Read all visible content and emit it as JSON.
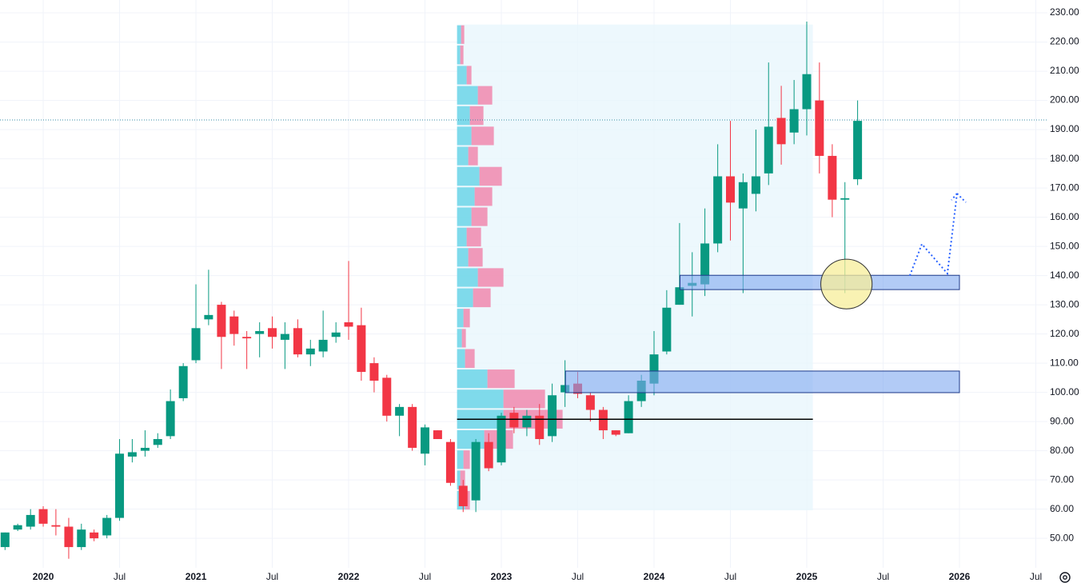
{
  "chart_data": {
    "type": "candlestick",
    "x": [
      2019.75,
      2019.833,
      2019.917,
      2020,
      2020.083,
      2020.167,
      2020.25,
      2020.333,
      2020.417,
      2020.5,
      2020.583,
      2020.667,
      2020.75,
      2020.833,
      2020.917,
      2021,
      2021.083,
      2021.167,
      2021.25,
      2021.333,
      2021.417,
      2021.5,
      2021.583,
      2021.667,
      2021.75,
      2021.833,
      2021.917,
      2022,
      2022.083,
      2022.167,
      2022.25,
      2022.333,
      2022.417,
      2022.5,
      2022.583,
      2022.667,
      2022.75,
      2022.833,
      2022.917,
      2023,
      2023.083,
      2023.167,
      2023.25,
      2023.333,
      2023.417,
      2023.5,
      2023.583,
      2023.667,
      2023.75,
      2023.833,
      2023.917,
      2024,
      2024.083,
      2024.167,
      2024.25,
      2024.333,
      2024.417,
      2024.5,
      2024.583,
      2024.667,
      2024.75,
      2024.833,
      2024.917,
      2025,
      2025.083,
      2025.167,
      2025.25,
      2025.333
    ],
    "open": [
      47,
      53,
      54,
      60,
      54.5,
      54,
      47,
      52,
      51,
      57,
      78,
      80,
      82,
      85,
      98,
      111,
      125,
      130,
      126,
      119,
      120,
      122,
      118,
      122,
      113,
      114,
      119,
      124,
      123,
      110,
      105,
      92,
      95,
      79,
      87,
      83,
      68,
      63,
      83,
      76,
      93,
      88,
      92,
      85,
      100,
      103,
      99,
      94,
      87,
      86,
      97,
      103,
      114,
      130,
      136.5,
      137,
      151,
      174,
      163,
      168,
      175,
      194,
      189,
      197,
      200,
      181,
      166,
      173
    ],
    "high": [
      52,
      55,
      60,
      61,
      60,
      57,
      55,
      53,
      58,
      84,
      84,
      87,
      86,
      101,
      110,
      137,
      142,
      131,
      128,
      121,
      124,
      126,
      124,
      125,
      118,
      128,
      124,
      145,
      129,
      112,
      106,
      96,
      96,
      89,
      87,
      84,
      70,
      84,
      86,
      93,
      95,
      94,
      96,
      103,
      111,
      107,
      100,
      95,
      87,
      99,
      106,
      121,
      135,
      158,
      148,
      163,
      185,
      193,
      175,
      190,
      213,
      205,
      207,
      227,
      213,
      185,
      172,
      200
    ],
    "low": [
      46,
      52.5,
      53,
      54,
      51,
      43,
      46,
      49,
      50,
      56,
      76,
      78,
      81,
      84,
      97,
      110,
      123,
      108,
      116,
      108,
      112,
      115,
      108,
      112,
      109,
      112,
      117,
      118,
      104,
      100,
      90,
      85,
      80,
      75,
      84,
      68,
      59,
      59,
      73,
      75,
      86,
      85,
      82,
      83,
      95,
      98,
      90,
      84,
      85,
      86,
      95,
      99,
      113,
      130,
      126,
      133,
      148,
      152,
      134,
      162,
      171,
      178,
      185,
      188,
      175,
      160,
      134,
      171
    ],
    "close": [
      52,
      54.5,
      58,
      55,
      54,
      47,
      53,
      50,
      57,
      79,
      79.5,
      81,
      84,
      97,
      109,
      122,
      126.5,
      119,
      120,
      118.5,
      121,
      119,
      120,
      113,
      115,
      118,
      120.5,
      122.5,
      107,
      104,
      92,
      95,
      81,
      88,
      84,
      69,
      61,
      83,
      74,
      92,
      88,
      92,
      84,
      99,
      102.5,
      99.5,
      94,
      87,
      85.5,
      97,
      104,
      113,
      129,
      136,
      137.5,
      151,
      174,
      165,
      172,
      174,
      191,
      185,
      197,
      209,
      181,
      166,
      166.5,
      193
    ],
    "up_color": "#089981",
    "down_color": "#f23645",
    "xlim": [
      2019.717,
      2026.576
    ],
    "ylim": [
      39.9,
      234.4
    ],
    "xticks": [
      {
        "value": 2020,
        "label": "2020"
      },
      {
        "value": 2020.5,
        "label": "Jul"
      },
      {
        "value": 2021,
        "label": "2021"
      },
      {
        "value": 2021.5,
        "label": "Jul"
      },
      {
        "value": 2022,
        "label": "2022"
      },
      {
        "value": 2022.5,
        "label": "Jul"
      },
      {
        "value": 2023,
        "label": "2023"
      },
      {
        "value": 2023.5,
        "label": "Jul"
      },
      {
        "value": 2024,
        "label": "2024"
      },
      {
        "value": 2024.5,
        "label": "Jul"
      },
      {
        "value": 2025,
        "label": "2025"
      },
      {
        "value": 2025.5,
        "label": "Jul"
      },
      {
        "value": 2026,
        "label": "2026"
      },
      {
        "value": 2026.5,
        "label": "Jul"
      }
    ],
    "yticks": [
      {
        "value": 50,
        "label": "50.00"
      },
      {
        "value": 60,
        "label": "60.00"
      },
      {
        "value": 70,
        "label": "70.00"
      },
      {
        "value": 80,
        "label": "80.00"
      },
      {
        "value": 90,
        "label": "90.00"
      },
      {
        "value": 100,
        "label": "100.00"
      },
      {
        "value": 110,
        "label": "110.00"
      },
      {
        "value": 120,
        "label": "120.00"
      },
      {
        "value": 130,
        "label": "130.00"
      },
      {
        "value": 140,
        "label": "140.00"
      },
      {
        "value": 150,
        "label": "150.00"
      },
      {
        "value": 160,
        "label": "160.00"
      },
      {
        "value": 170,
        "label": "170.00"
      },
      {
        "value": 180,
        "label": "180.00"
      },
      {
        "value": 190,
        "label": "190.00"
      },
      {
        "value": 200,
        "label": "200.00"
      },
      {
        "value": 210,
        "label": "210.00"
      },
      {
        "value": 220,
        "label": "220.00"
      },
      {
        "value": 230,
        "label": "230.00"
      }
    ],
    "grid": true,
    "last_price": 193.3,
    "last_price_color": "#3b8fa8",
    "profile": {
      "x": [
        2022.71,
        2025.04
      ],
      "levels": [
        59.6,
        66.5,
        73.5,
        80.4,
        87.3,
        94.3,
        101.2,
        108.1,
        115.1,
        122.0,
        128.9,
        135.9,
        142.8,
        149.7,
        156.7,
        163.6,
        170.5,
        177.5,
        184.4,
        191.3,
        198.3,
        205.2,
        212.1,
        219.1,
        226.0
      ],
      "up": [
        10,
        4,
        8,
        34,
        58,
        58,
        38,
        10,
        6,
        8,
        20,
        26,
        14,
        12,
        18,
        22,
        28,
        14,
        18,
        16,
        26,
        12,
        4,
        5
      ],
      "down": [
        6,
        6,
        8,
        36,
        74,
        52,
        34,
        12,
        5,
        8,
        22,
        32,
        18,
        18,
        20,
        22,
        28,
        12,
        28,
        17,
        18,
        6,
        4,
        4
      ],
      "up_color": "#5ad0e4",
      "down_color": "#f07aa3",
      "area_color": "#e8f6fc"
    },
    "zones": [
      {
        "x": [
          2024.17,
          2026.0
        ],
        "y": [
          135.2,
          140.1
        ]
      },
      {
        "x": [
          2023.42,
          2026.0
        ],
        "y": [
          99.9,
          107.3
        ]
      }
    ],
    "zone_color": "#7fa8f0",
    "hline": {
      "x": [
        2022.71,
        2025.04
      ],
      "y": 90.8
    },
    "ellipse": {
      "x": 2025.26,
      "y": 137.1,
      "rx": 0.168,
      "ry": 8.5,
      "color": "#f7ee9a"
    },
    "path": {
      "x": [
        2025.675,
        2025.754,
        2025.921,
        2025.984
      ],
      "y": [
        140.0,
        150.8,
        140.7,
        168.1
      ],
      "head_x": [
        2025.948,
        2026.042
      ],
      "head_y": [
        165.9,
        165.1
      ],
      "color": "#2962ff"
    }
  }
}
